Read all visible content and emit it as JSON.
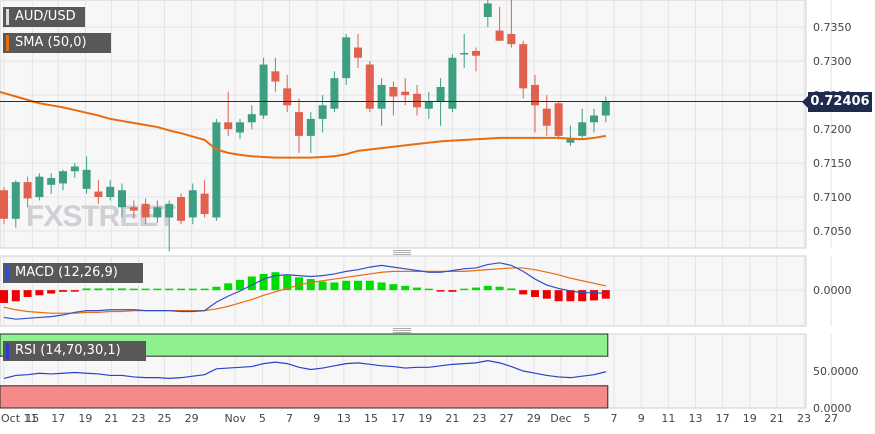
{
  "chart_data": {
    "type": "candlestick",
    "symbol": "AUD/USD",
    "x_tick_labels": [
      "Oct 11",
      "15",
      "17",
      "19",
      "21",
      "23",
      "25",
      "29",
      "Nov",
      "5",
      "7",
      "9",
      "13",
      "15",
      "17",
      "19",
      "21",
      "23",
      "27",
      "29",
      "Dec",
      "5",
      "7",
      "9",
      "11",
      "13",
      "17",
      "19",
      "21",
      "23",
      "27"
    ],
    "price_panel": {
      "y_ticks": [
        "0.7350",
        "0.7300",
        "0.7250",
        "0.7200",
        "0.7150",
        "0.7100",
        "0.7050"
      ],
      "ylim": [
        0.7025,
        0.739
      ],
      "current_price_label": "0.72406",
      "current_price": 0.72406,
      "ohlc": [
        [
          0.711,
          0.7115,
          0.706,
          0.7068
        ],
        [
          0.7068,
          0.7125,
          0.7055,
          0.7122
        ],
        [
          0.7122,
          0.713,
          0.7085,
          0.7098
        ],
        [
          0.71,
          0.7135,
          0.7095,
          0.713
        ],
        [
          0.7118,
          0.7135,
          0.7105,
          0.7128
        ],
        [
          0.712,
          0.714,
          0.711,
          0.7138
        ],
        [
          0.7138,
          0.715,
          0.7128,
          0.7145
        ],
        [
          0.7112,
          0.716,
          0.7105,
          0.714
        ],
        [
          0.7108,
          0.7125,
          0.709,
          0.71
        ],
        [
          0.71,
          0.7125,
          0.7095,
          0.7115
        ],
        [
          0.7085,
          0.712,
          0.707,
          0.711
        ],
        [
          0.7085,
          0.7095,
          0.7068,
          0.708
        ],
        [
          0.709,
          0.7098,
          0.706,
          0.707
        ],
        [
          0.707,
          0.7095,
          0.7062,
          0.7085
        ],
        [
          0.707,
          0.7095,
          0.702,
          0.709
        ],
        [
          0.71,
          0.7105,
          0.706,
          0.7065
        ],
        [
          0.707,
          0.712,
          0.706,
          0.711
        ],
        [
          0.7105,
          0.7125,
          0.707,
          0.7075
        ],
        [
          0.707,
          0.7215,
          0.7065,
          0.721
        ],
        [
          0.721,
          0.7255,
          0.719,
          0.72
        ],
        [
          0.7195,
          0.7215,
          0.7185,
          0.721
        ],
        [
          0.721,
          0.7235,
          0.72,
          0.7222
        ],
        [
          0.722,
          0.7305,
          0.7215,
          0.7295
        ],
        [
          0.7285,
          0.7305,
          0.7255,
          0.727
        ],
        [
          0.726,
          0.728,
          0.7225,
          0.7235
        ],
        [
          0.7225,
          0.7245,
          0.7165,
          0.719
        ],
        [
          0.719,
          0.7225,
          0.7165,
          0.7215
        ],
        [
          0.7215,
          0.725,
          0.7195,
          0.7235
        ],
        [
          0.723,
          0.7285,
          0.7225,
          0.7275
        ],
        [
          0.7275,
          0.734,
          0.7265,
          0.7335
        ],
        [
          0.732,
          0.734,
          0.729,
          0.7305
        ],
        [
          0.7295,
          0.73,
          0.7225,
          0.723
        ],
        [
          0.723,
          0.7275,
          0.7205,
          0.7265
        ],
        [
          0.7262,
          0.727,
          0.722,
          0.7248
        ],
        [
          0.7255,
          0.7275,
          0.7235,
          0.725
        ],
        [
          0.7252,
          0.7265,
          0.722,
          0.7232
        ],
        [
          0.723,
          0.7255,
          0.7215,
          0.724
        ],
        [
          0.724,
          0.7275,
          0.7205,
          0.7262
        ],
        [
          0.723,
          0.731,
          0.7225,
          0.7305
        ],
        [
          0.731,
          0.734,
          0.729,
          0.7312
        ],
        [
          0.7315,
          0.732,
          0.7285,
          0.7308
        ],
        [
          0.7365,
          0.739,
          0.735,
          0.7385
        ],
        [
          0.7345,
          0.738,
          0.733,
          0.733
        ],
        [
          0.734,
          0.739,
          0.732,
          0.7325
        ],
        [
          0.7325,
          0.733,
          0.7245,
          0.726
        ],
        [
          0.7265,
          0.728,
          0.7195,
          0.7235
        ],
        [
          0.723,
          0.725,
          0.719,
          0.7205
        ],
        [
          0.7238,
          0.724,
          0.7185,
          0.719
        ],
        [
          0.718,
          0.7205,
          0.7175,
          0.7185
        ],
        [
          0.719,
          0.723,
          0.7185,
          0.721
        ],
        [
          0.721,
          0.723,
          0.7195,
          0.722
        ],
        [
          0.722,
          0.7248,
          0.721,
          0.7241
        ]
      ],
      "sma": {
        "label": "SMA (50,0)",
        "color": "#e96c10",
        "values": [
          0.7253,
          0.7248,
          0.7243,
          0.7238,
          0.7235,
          0.7232,
          0.7228,
          0.7224,
          0.722,
          0.7215,
          0.7212,
          0.7209,
          0.7206,
          0.7203,
          0.7198,
          0.7194,
          0.7189,
          0.7184,
          0.717,
          0.7165,
          0.7162,
          0.716,
          0.7159,
          0.7158,
          0.7158,
          0.7158,
          0.7158,
          0.7159,
          0.716,
          0.7163,
          0.7168,
          0.717,
          0.7172,
          0.7174,
          0.7176,
          0.7178,
          0.718,
          0.7182,
          0.7183,
          0.7184,
          0.7185,
          0.7186,
          0.7187,
          0.7187,
          0.7187,
          0.7187,
          0.7187,
          0.7187,
          0.7186,
          0.7185,
          0.7187,
          0.719
        ]
      }
    },
    "macd_panel": {
      "label": "MACD (12,26,9)",
      "y_ticks": [
        "0.0000"
      ],
      "ylim": [
        -0.0042,
        0.004
      ],
      "macd_color": "#3050c8",
      "signal_color": "#e96c10",
      "hist_up_color": "#00dd00",
      "hist_down_color": "#ee0000",
      "macd": [
        -0.0032,
        -0.0034,
        -0.0033,
        -0.0032,
        -0.0031,
        -0.0029,
        -0.0026,
        -0.0024,
        -0.0024,
        -0.0023,
        -0.0023,
        -0.0023,
        -0.0024,
        -0.0024,
        -0.0024,
        -0.0025,
        -0.0025,
        -0.0024,
        -0.0014,
        -0.0007,
        -0.0001,
        0.0006,
        0.0013,
        0.0017,
        0.0018,
        0.0017,
        0.0016,
        0.0017,
        0.0019,
        0.0022,
        0.0024,
        0.0027,
        0.0029,
        0.0027,
        0.0025,
        0.0023,
        0.0021,
        0.0021,
        0.0023,
        0.0025,
        0.0026,
        0.003,
        0.0032,
        0.0029,
        0.0022,
        0.0013,
        0.0006,
        0.0002,
        -0.0001,
        -0.0003,
        -0.0003,
        -0.0004
      ],
      "signal": [
        -0.002,
        -0.0023,
        -0.0025,
        -0.0026,
        -0.0027,
        -0.0027,
        -0.0027,
        -0.0026,
        -0.0026,
        -0.0025,
        -0.0025,
        -0.0024,
        -0.0024,
        -0.0024,
        -0.0024,
        -0.0024,
        -0.0024,
        -0.0024,
        -0.0022,
        -0.0019,
        -0.0015,
        -0.0011,
        -0.0006,
        -0.0002,
        0.0002,
        0.0006,
        0.0009,
        0.0011,
        0.0013,
        0.0015,
        0.0017,
        0.0019,
        0.0021,
        0.0022,
        0.0022,
        0.0022,
        0.0022,
        0.0022,
        0.0022,
        0.0022,
        0.0023,
        0.0024,
        0.0025,
        0.0026,
        0.0026,
        0.0024,
        0.0021,
        0.0018,
        0.0014,
        0.0011,
        0.0008,
        0.0005
      ],
      "histogram": [
        -0.0015,
        -0.0013,
        -0.0008,
        -0.0006,
        -0.0004,
        -0.0002,
        -0.0001,
        0.0002,
        0.0002,
        0.0002,
        0.0002,
        0.0001,
        0.0,
        0.0,
        0.0,
        0.0,
        0.0,
        0.0,
        0.0004,
        0.0008,
        0.0012,
        0.0016,
        0.0019,
        0.0021,
        0.0017,
        0.0015,
        0.0013,
        0.001,
        0.0009,
        0.0011,
        0.0011,
        0.0011,
        0.0009,
        0.0007,
        0.0005,
        0.0003,
        0.0001,
        -0.0001,
        -0.0002,
        0.0001,
        0.0003,
        0.0005,
        0.0004,
        0.0002,
        -0.0005,
        -0.0008,
        -0.001,
        -0.0013,
        -0.0013,
        -0.0013,
        -0.0012,
        -0.001
      ]
    },
    "rsi_panel": {
      "label": "RSI (14,70,30,1)",
      "y_ticks": [
        "50.0000",
        "0.0000"
      ],
      "ylim": [
        0,
        100
      ],
      "overbought": 70,
      "oversold": 30,
      "overbought_color": "#8ef08e",
      "oversold_color": "#f48a8a",
      "line_color": "#2a40c8",
      "values": [
        40,
        44,
        45,
        47,
        46,
        47,
        48,
        47,
        46,
        44,
        44,
        42,
        41,
        41,
        40,
        41,
        43,
        45,
        53,
        54,
        55,
        56,
        60,
        62,
        60,
        55,
        52,
        54,
        57,
        60,
        61,
        59,
        57,
        56,
        54,
        55,
        55,
        57,
        59,
        60,
        61,
        64,
        61,
        56,
        50,
        47,
        44,
        42,
        41,
        43,
        45,
        49
      ]
    }
  }
}
